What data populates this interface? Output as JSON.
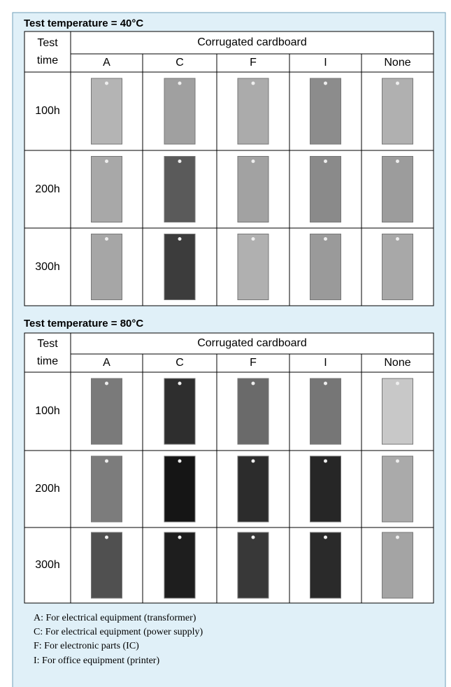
{
  "sections": [
    {
      "title": "Test temperature = 40°C",
      "header": {
        "corner": "Test time",
        "group": "Corrugated cardboard",
        "columns": [
          "A",
          "C",
          "F",
          "I",
          "None"
        ]
      },
      "rows": [
        {
          "label": "100h"
        },
        {
          "label": "200h"
        },
        {
          "label": "300h"
        }
      ]
    },
    {
      "title": "Test temperature = 80°C",
      "header": {
        "corner": "Test time",
        "group": "Corrugated cardboard",
        "columns": [
          "A",
          "C",
          "F",
          "I",
          "None"
        ]
      },
      "rows": [
        {
          "label": "100h"
        },
        {
          "label": "200h"
        },
        {
          "label": "300h"
        }
      ]
    }
  ],
  "notes": [
    "A: For electrical equipment (transformer)",
    "C: For electrical equipment (power supply)",
    "F: For electronic parts (IC)",
    "I: For office equipment (printer)"
  ]
}
